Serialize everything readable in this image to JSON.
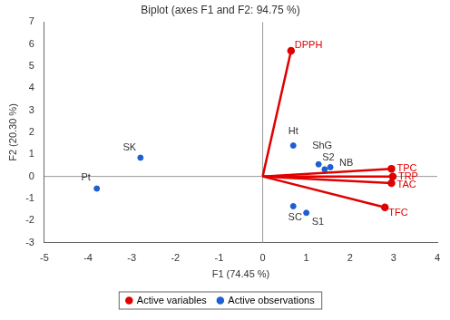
{
  "chart_data": {
    "type": "biplot",
    "title": "Biplot (axes F1 and F2: 94.75 %)",
    "x_label": "F1 (74.45 %)",
    "y_label": "F2 (20.30 %)",
    "xlim": [
      -5,
      4
    ],
    "xticks": [
      -5,
      -4,
      -3,
      -2,
      -1,
      0,
      1,
      2,
      3,
      4
    ],
    "ylim": [
      -3,
      7
    ],
    "yticks": [
      -3,
      -2,
      -1,
      0,
      1,
      2,
      3,
      4,
      5,
      6,
      7
    ],
    "grid": false,
    "legend": "bottom",
    "series": [
      {
        "name": "Active variables",
        "color": "#e00000",
        "type": "vector",
        "points": [
          {
            "label": "DPPH",
            "x": 0.65,
            "y": 5.7
          },
          {
            "label": "TPC",
            "x": 2.95,
            "y": 0.35
          },
          {
            "label": "TRP",
            "x": 2.98,
            "y": 0.0
          },
          {
            "label": "TAC",
            "x": 2.95,
            "y": -0.3
          },
          {
            "label": "TFC",
            "x": 2.8,
            "y": -1.4
          }
        ]
      },
      {
        "name": "Active observations",
        "color": "#1f5fcf",
        "type": "scatter",
        "points": [
          {
            "label": "Pt",
            "x": -3.8,
            "y": -0.55
          },
          {
            "label": "SK",
            "x": -2.8,
            "y": 0.85
          },
          {
            "label": "Ht",
            "x": 0.7,
            "y": 1.4
          },
          {
            "label": "ShG",
            "x": 1.28,
            "y": 0.55
          },
          {
            "label": "S2",
            "x": 1.42,
            "y": 0.32
          },
          {
            "label": "NB",
            "x": 1.55,
            "y": 0.42
          },
          {
            "label": "SC",
            "x": 0.7,
            "y": -1.35
          },
          {
            "label": "S1",
            "x": 1.0,
            "y": -1.65
          }
        ]
      }
    ]
  }
}
